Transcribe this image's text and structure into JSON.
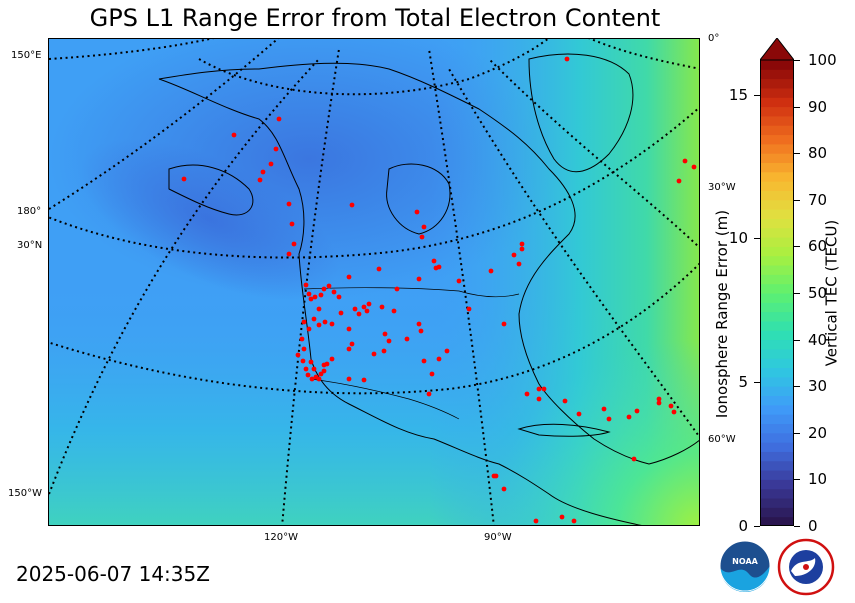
{
  "chart_data": {
    "type": "heatmap",
    "title": "GPS L1 Range Error from Total Electron Content",
    "timestamp": "2025-06-07 14:35Z",
    "map_labels": {
      "lon": [
        "150°E",
        "180°",
        "30°N",
        "150°W",
        "120°W",
        "90°W",
        "0°",
        "30°W",
        "60°W"
      ]
    },
    "colorbar": {
      "label": "Vertical TEC (TECU)",
      "range": [
        0,
        100
      ],
      "ticks": [
        0,
        10,
        20,
        30,
        40,
        50,
        60,
        70,
        80,
        90,
        100
      ],
      "extend": "max"
    },
    "range_error_axis": {
      "label": "Ionosphere Range Error (m)",
      "ticks": [
        0,
        5,
        10,
        15
      ],
      "max_value": 16.2
    },
    "station_count_visible": 120
  },
  "colors": {
    "station": "#ff0000",
    "cb_stops": [
      "#2a1650",
      "#3a3a9a",
      "#3f6fe0",
      "#3f9cf8",
      "#2fc8e0",
      "#2fe0b0",
      "#5ef070",
      "#a8f040",
      "#e0e040",
      "#f8b830",
      "#f07020",
      "#d03010",
      "#8a0808"
    ]
  },
  "logos": {
    "noaa": "NOAA",
    "nws": "NATIONAL WEATHER SERVICE"
  }
}
